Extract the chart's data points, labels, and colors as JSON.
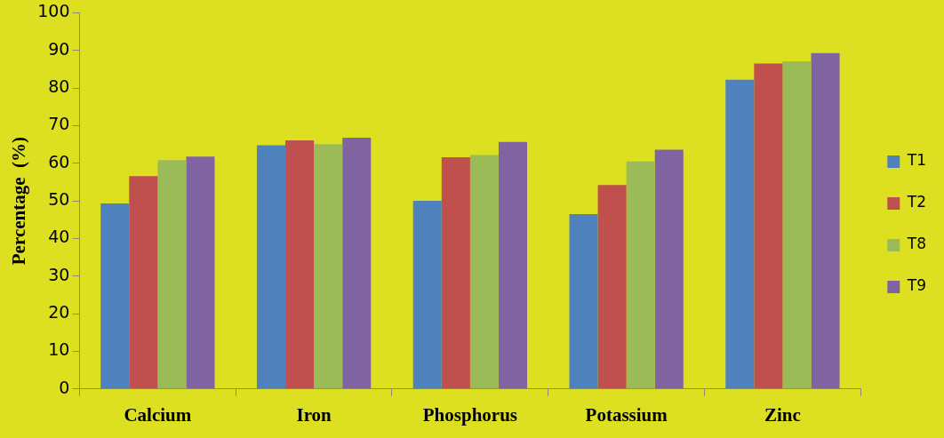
{
  "chart_data": {
    "type": "bar",
    "ylabel": "Percentage  (%)",
    "categories": [
      "Calcium",
      "Iron",
      "Phosphorus",
      "Potassium",
      "Zinc"
    ],
    "series": [
      {
        "name": "T1",
        "color": "#4f81bd",
        "values": [
          49.3,
          64.8,
          50.0,
          46.5,
          82.2
        ]
      },
      {
        "name": "T2",
        "color": "#c0504d",
        "values": [
          56.6,
          66.1,
          61.6,
          54.2,
          86.5
        ]
      },
      {
        "name": "T8",
        "color": "#9bbb59",
        "values": [
          60.8,
          65.1,
          62.2,
          60.5,
          87.1
        ]
      },
      {
        "name": "T9",
        "color": "#8064a2",
        "values": [
          61.8,
          66.8,
          65.7,
          63.6,
          89.3
        ]
      }
    ],
    "ylim": [
      0,
      100
    ],
    "yticks": [
      0,
      10,
      20,
      30,
      40,
      50,
      60,
      70,
      80,
      90,
      100
    ],
    "grid": false,
    "legend": "right"
  }
}
